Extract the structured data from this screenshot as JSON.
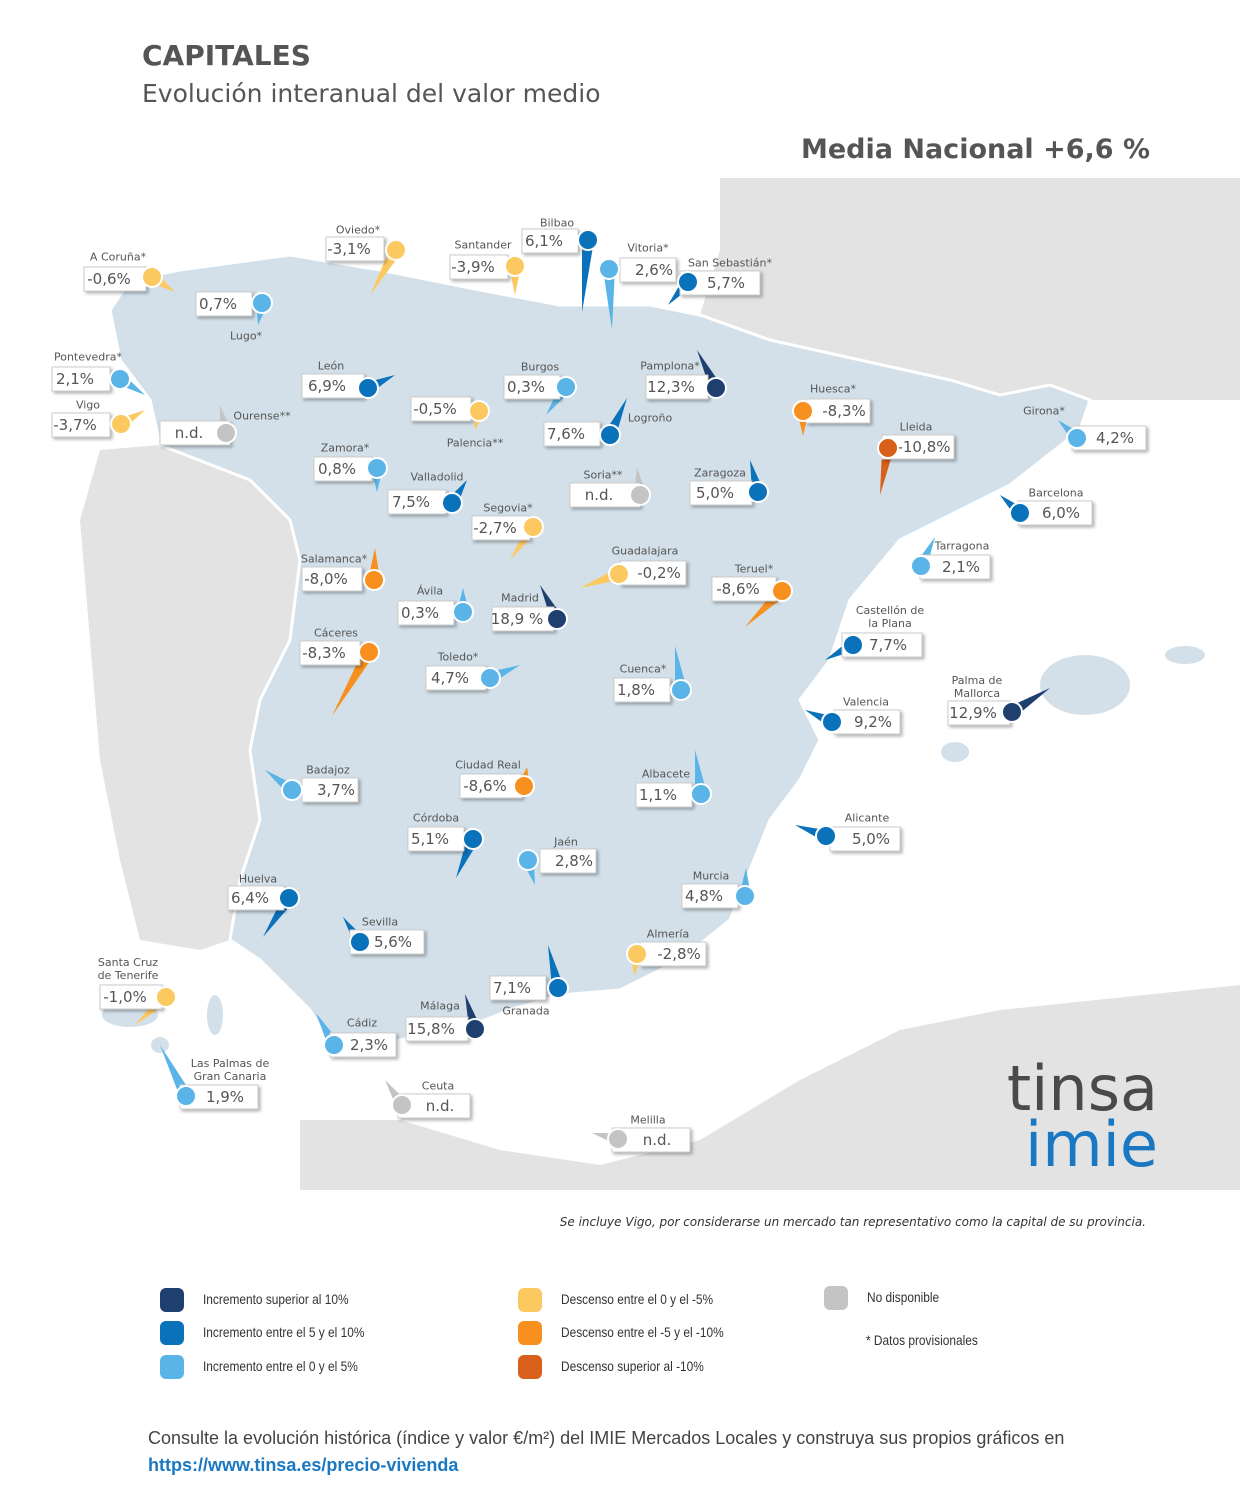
{
  "header": {
    "title": "CAPITALES",
    "subtitle": "Evolución interanual del valor medio",
    "national_average": "Media Nacional +6,6 %"
  },
  "cities": [
    {
      "name": "A Coruña*",
      "value": "-0,6%",
      "color": "#fcc960"
    },
    {
      "name": "Oviedo*",
      "value": "-3,1%",
      "color": "#fcc960"
    },
    {
      "name": "Santander",
      "value": "-3,9%",
      "color": "#fcc960"
    },
    {
      "name": "Bilbao",
      "value": "6,1%",
      "color": "#0a72ba"
    },
    {
      "name": "Vitoria*",
      "value": "2,6%",
      "color": "#5ab4e8"
    },
    {
      "name": "San Sebastián*",
      "value": "5,7%",
      "color": "#0a72ba"
    },
    {
      "name": "Lugo*",
      "value": "0,7%",
      "color": "#5ab4e8"
    },
    {
      "name": "Pontevedra*",
      "value": "2,1%",
      "color": "#5ab4e8"
    },
    {
      "name": "Vigo",
      "value": "-3,7%",
      "color": "#fcc960"
    },
    {
      "name": "Ourense**",
      "value": "n.d.",
      "color": "#c4c4c4"
    },
    {
      "name": "León",
      "value": "6,9%",
      "color": "#0a72ba"
    },
    {
      "name": "Palencia**",
      "value": "-0,5%",
      "color": "#fcc960"
    },
    {
      "name": "Burgos",
      "value": "0,3%",
      "color": "#5ab4e8"
    },
    {
      "name": "Pamplona*",
      "value": "12,3%",
      "color": "#1f3f6e"
    },
    {
      "name": "Huesca*",
      "value": "-8,3%",
      "color": "#f7901e"
    },
    {
      "name": "Logroño",
      "value": "7,6%",
      "color": "#0a72ba"
    },
    {
      "name": "Lleida",
      "value": "-10,8%",
      "color": "#d9601a"
    },
    {
      "name": "Girona*",
      "value": "4,2%",
      "color": "#5ab4e8"
    },
    {
      "name": "Zamora*",
      "value": "0,8%",
      "color": "#5ab4e8"
    },
    {
      "name": "Valladolid",
      "value": "7,5%",
      "color": "#0a72ba"
    },
    {
      "name": "Soria**",
      "value": "n.d.",
      "color": "#c4c4c4"
    },
    {
      "name": "Zaragoza",
      "value": "5,0%",
      "color": "#0a72ba"
    },
    {
      "name": "Barcelona",
      "value": "6,0%",
      "color": "#0a72ba"
    },
    {
      "name": "Segovia*",
      "value": "-2,7%",
      "color": "#fcc960"
    },
    {
      "name": "Salamanca*",
      "value": "-8,0%",
      "color": "#f7901e"
    },
    {
      "name": "Guadalajara",
      "value": "-0,2%",
      "color": "#fcc960"
    },
    {
      "name": "Teruel*",
      "value": "-8,6%",
      "color": "#f7901e"
    },
    {
      "name": "Tarragona",
      "value": "2,1%",
      "color": "#5ab4e8"
    },
    {
      "name": "Ávila",
      "value": "0,3%",
      "color": "#5ab4e8"
    },
    {
      "name": "Madrid",
      "value": "18,9 %",
      "color": "#1f3f6e"
    },
    {
      "name": "Castellón de la Plana",
      "value": "7,7%",
      "color": "#0a72ba"
    },
    {
      "name": "Cáceres",
      "value": "-8,3%",
      "color": "#f7901e"
    },
    {
      "name": "Toledo*",
      "value": "4,7%",
      "color": "#5ab4e8"
    },
    {
      "name": "Cuenca*",
      "value": "1,8%",
      "color": "#5ab4e8"
    },
    {
      "name": "Palma de Mallorca",
      "value": "12,9%",
      "color": "#1f3f6e"
    },
    {
      "name": "Valencia",
      "value": "9,2%",
      "color": "#0a72ba"
    },
    {
      "name": "Badajoz",
      "value": "3,7%",
      "color": "#5ab4e8"
    },
    {
      "name": "Ciudad Real",
      "value": "-8,6%",
      "color": "#f7901e"
    },
    {
      "name": "Albacete",
      "value": "1,1%",
      "color": "#5ab4e8"
    },
    {
      "name": "Alicante",
      "value": "5,0%",
      "color": "#0a72ba"
    },
    {
      "name": "Córdoba",
      "value": "5,1%",
      "color": "#0a72ba"
    },
    {
      "name": "Jaén",
      "value": "2,8%",
      "color": "#5ab4e8"
    },
    {
      "name": "Huelva",
      "value": "6,4%",
      "color": "#0a72ba"
    },
    {
      "name": "Murcia",
      "value": "4,8%",
      "color": "#5ab4e8"
    },
    {
      "name": "Sevilla",
      "value": "5,6%",
      "color": "#0a72ba"
    },
    {
      "name": "Almería",
      "value": "-2,8%",
      "color": "#fcc960"
    },
    {
      "name": "Santa Cruz de Tenerife",
      "value": "-1,0%",
      "color": "#fcc960"
    },
    {
      "name": "Granada",
      "value": "7,1%",
      "color": "#0a72ba"
    },
    {
      "name": "Málaga",
      "value": "15,8%",
      "color": "#1f3f6e"
    },
    {
      "name": "Cádiz",
      "value": "2,3%",
      "color": "#5ab4e8"
    },
    {
      "name": "Las Palmas de Gran Canaria",
      "value": "1,9%",
      "color": "#5ab4e8"
    },
    {
      "name": "Ceuta",
      "value": "n.d.",
      "color": "#c4c4c4"
    },
    {
      "name": "Melilla",
      "value": "n.d.",
      "color": "#c4c4c4"
    }
  ],
  "note": "Se incluye Vigo, por considerarse un mercado tan representativo como la capital de su provincia.",
  "legend": {
    "items": [
      {
        "label": "Incremento superior al 10%",
        "color": "#1f3f6e"
      },
      {
        "label": "Incremento entre el 5 y el 10%",
        "color": "#0a72ba"
      },
      {
        "label": "Incremento entre el 0 y el 5%",
        "color": "#5ab4e8"
      },
      {
        "label": "Descenso entre el 0 y el -5%",
        "color": "#fcc960"
      },
      {
        "label": "Descenso entre el -5 y el -10%",
        "color": "#f7901e"
      },
      {
        "label": "Descenso superior al -10%",
        "color": "#d9601a"
      },
      {
        "label": "No disponible",
        "color": "#c4c4c4"
      }
    ],
    "footnote": "* Datos provisionales"
  },
  "footer": {
    "text": "Consulte la evolución histórica (índice y valor €/m²) del IMIE Mercados Locales y construya sus propios gráficos en",
    "link": "https://www.tinsa.es/precio-vivienda"
  },
  "logo": {
    "top": "tinsa",
    "bottom": "imie"
  }
}
